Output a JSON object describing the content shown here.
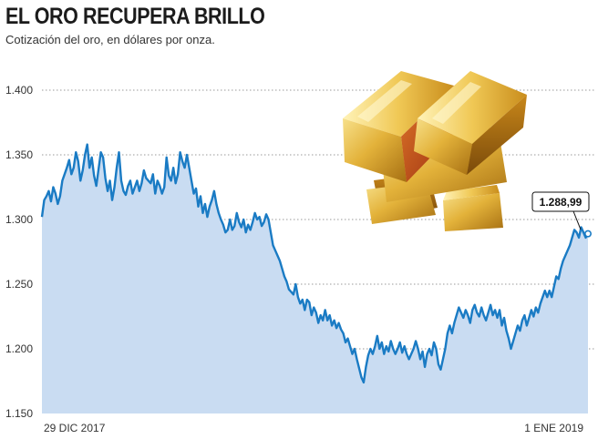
{
  "header": {
    "title": "EL ORO RECUPERA BRILLO",
    "subtitle": "Cotización del oro, en dólares por onza."
  },
  "chart_data": {
    "type": "area",
    "title": "EL ORO RECUPERA BRILLO",
    "subtitle": "Cotización del oro, en dólares por onza.",
    "xlabel": "",
    "ylabel": "",
    "ylim": [
      1150,
      1420
    ],
    "y_ticks": [
      1150,
      1200,
      1250,
      1300,
      1350,
      1400
    ],
    "y_tick_labels": [
      "1.150",
      "1.200",
      "1.250",
      "1.300",
      "1.350",
      "1.400"
    ],
    "x_labels": [
      "29 DIC 2017",
      "1 ENE 2019"
    ],
    "grid": true,
    "colors": {
      "line": "#1a7bc4",
      "fill": "#c9dcf2",
      "grid": "#9a9a9a"
    },
    "last_value_label": "1.288,99",
    "series": [
      {
        "values": [
          1302,
          1315,
          1318,
          1322,
          1314,
          1325,
          1320,
          1312,
          1318,
          1330,
          1335,
          1340,
          1346,
          1335,
          1340,
          1352,
          1345,
          1330,
          1338,
          1350,
          1358,
          1340,
          1348,
          1334,
          1326,
          1339,
          1352,
          1348,
          1332,
          1322,
          1330,
          1315,
          1325,
          1340,
          1352,
          1330,
          1322,
          1319,
          1326,
          1330,
          1320,
          1325,
          1330,
          1322,
          1328,
          1338,
          1332,
          1330,
          1328,
          1335,
          1320,
          1330,
          1326,
          1320,
          1325,
          1348,
          1334,
          1330,
          1340,
          1328,
          1335,
          1352,
          1345,
          1340,
          1350,
          1340,
          1330,
          1320,
          1324,
          1310,
          1318,
          1305,
          1312,
          1302,
          1310,
          1315,
          1322,
          1312,
          1305,
          1300,
          1296,
          1290,
          1292,
          1300,
          1292,
          1295,
          1305,
          1298,
          1294,
          1300,
          1290,
          1296,
          1292,
          1298,
          1305,
          1300,
          1302,
          1295,
          1298,
          1304,
          1300,
          1290,
          1280,
          1276,
          1272,
          1268,
          1262,
          1256,
          1252,
          1246,
          1244,
          1242,
          1250,
          1240,
          1235,
          1238,
          1230,
          1238,
          1236,
          1226,
          1232,
          1228,
          1220,
          1226,
          1222,
          1230,
          1222,
          1226,
          1218,
          1222,
          1216,
          1220,
          1215,
          1212,
          1205,
          1208,
          1202,
          1196,
          1200,
          1192,
          1185,
          1178,
          1174,
          1186,
          1195,
          1200,
          1196,
          1202,
          1210,
          1200,
          1205,
          1196,
          1202,
          1198,
          1206,
          1200,
          1196,
          1200,
          1205,
          1197,
          1202,
          1196,
          1192,
          1196,
          1200,
          1206,
          1200,
          1192,
          1198,
          1186,
          1196,
          1200,
          1195,
          1205,
          1200,
          1188,
          1184,
          1192,
          1200,
          1212,
          1218,
          1212,
          1220,
          1226,
          1232,
          1228,
          1224,
          1230,
          1226,
          1220,
          1230,
          1234,
          1228,
          1225,
          1232,
          1226,
          1222,
          1228,
          1234,
          1226,
          1230,
          1224,
          1230,
          1218,
          1224,
          1214,
          1208,
          1200,
          1206,
          1212,
          1218,
          1214,
          1222,
          1226,
          1218,
          1224,
          1230,
          1225,
          1232,
          1228,
          1235,
          1240,
          1245,
          1240,
          1245,
          1240,
          1248,
          1256,
          1254,
          1262,
          1268,
          1272,
          1276,
          1280,
          1286,
          1292,
          1290,
          1286,
          1294,
          1290,
          1286,
          1289
        ]
      }
    ]
  }
}
